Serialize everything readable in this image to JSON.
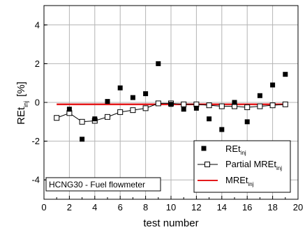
{
  "chart_data": {
    "type": "scatter",
    "xlabel": "test number",
    "ylabel_main": "REt",
    "ylabel_sub": "inj",
    "ylabel_unit": "[%]",
    "xlim": [
      0,
      20
    ],
    "ylim": [
      -5,
      5
    ],
    "x_ticks": [
      0,
      2,
      4,
      6,
      8,
      10,
      12,
      14,
      16,
      18,
      20
    ],
    "y_ticks": [
      -4,
      -2,
      0,
      2,
      4
    ],
    "grid": true,
    "annotation": "HCNG30 - Fuel flowmeter",
    "legend_position": "bottom-right",
    "series": [
      {
        "name_main": "REt",
        "name_sub": "inj",
        "style": "filled-square-markers",
        "color": "#000000",
        "points": [
          [
            2,
            -0.35
          ],
          [
            3,
            -1.9
          ],
          [
            4,
            -0.85
          ],
          [
            5,
            0.05
          ],
          [
            6,
            0.75
          ],
          [
            7,
            0.25
          ],
          [
            8,
            0.45
          ],
          [
            9,
            2.0
          ],
          [
            10,
            -0.1
          ],
          [
            11,
            -0.35
          ],
          [
            12,
            -0.3
          ],
          [
            13,
            -0.85
          ],
          [
            14,
            -1.4
          ],
          [
            15,
            0.0
          ],
          [
            16,
            -1.0
          ],
          [
            17,
            0.35
          ],
          [
            18,
            0.9
          ],
          [
            19,
            1.45
          ]
        ]
      },
      {
        "name_main": "Partial MREt",
        "name_sub": "inj",
        "style": "line-open-square-markers",
        "color": "#000000",
        "points": [
          [
            1,
            -0.8
          ],
          [
            2,
            -0.55
          ],
          [
            3,
            -1.0
          ],
          [
            4,
            -0.95
          ],
          [
            5,
            -0.75
          ],
          [
            6,
            -0.5
          ],
          [
            7,
            -0.4
          ],
          [
            8,
            -0.3
          ],
          [
            9,
            -0.05
          ],
          [
            10,
            -0.05
          ],
          [
            11,
            -0.1
          ],
          [
            12,
            -0.1
          ],
          [
            13,
            -0.15
          ],
          [
            14,
            -0.2
          ],
          [
            15,
            -0.2
          ],
          [
            16,
            -0.25
          ],
          [
            17,
            -0.2
          ],
          [
            18,
            -0.15
          ],
          [
            19,
            -0.1
          ]
        ]
      },
      {
        "name_main": "MREt",
        "name_sub": "inj",
        "style": "line",
        "color": "#e41a1c",
        "points": [
          [
            1,
            -0.1
          ],
          [
            19,
            -0.1
          ]
        ]
      }
    ]
  }
}
